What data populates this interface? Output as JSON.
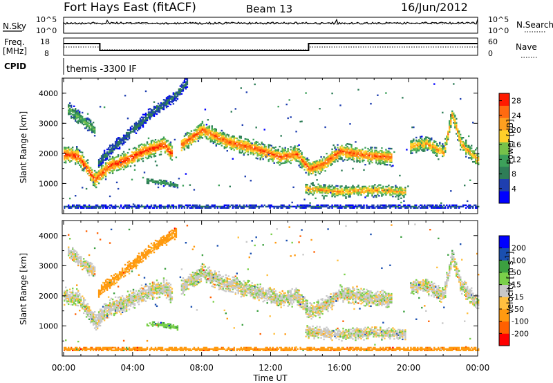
{
  "header": {
    "station": "Fort Hays East (fitACF)",
    "beam": "Beam 13",
    "date": "16/Jun/2012"
  },
  "panels": {
    "nsky_label": "N.Sky",
    "nsearch_label": "N.Search",
    "nsky_ticks": [
      "10^5",
      "10^0"
    ],
    "nsearch_ticks": [
      "10^5",
      "10^0"
    ],
    "freq_label": [
      "Freq.",
      "[MHz]"
    ],
    "freq_ticks": [
      "18",
      "8"
    ],
    "nave_label": "Nave",
    "nave_ticks": [
      "60",
      "0"
    ],
    "cpid_label": "CPID",
    "cpid_value": "themis -3300 IF"
  },
  "colors": {
    "power": [
      "#0000ff",
      "#1f3fb0",
      "#2e7d57",
      "#3da05a",
      "#77c24a",
      "#ffd02a",
      "#ffa020",
      "#ff6a10",
      "#ff1a00"
    ],
    "velocity": [
      "#ff0000",
      "#ff6000",
      "#ff9a10",
      "#ffc040",
      "#c8c8c8",
      "#7ad04a",
      "#3ca040",
      "#1a4fb0",
      "#0000ff"
    ]
  },
  "chart_data": [
    {
      "type": "heatmap",
      "title": "",
      "xlabel": "Time UT",
      "ylabel": "Slant Range [km]",
      "xlim": [
        "00:00",
        "24:00"
      ],
      "ylim": [
        0,
        4500
      ],
      "x_ticks": [
        "00:00",
        "04:00",
        "08:00",
        "12:00",
        "16:00",
        "20:00",
        "00:00"
      ],
      "y_ticks": [
        1000,
        2000,
        3000,
        4000
      ],
      "colorbar_label": "Power [dB]",
      "colorbar_ticks": [
        4,
        8,
        12,
        16,
        20,
        24,
        28
      ],
      "colorbar_range": [
        0,
        30
      ],
      "echo_bands": [
        {
          "t": [
            0,
            0.8,
            1.8,
            2.6,
            3.6,
            4.6,
            5.8,
            6.3
          ],
          "r": [
            1950,
            1880,
            1100,
            1550,
            1750,
            2050,
            2250,
            1950
          ],
          "w": 230,
          "peak": 28
        },
        {
          "t": [
            0.2,
            1.0,
            1.8
          ],
          "r": [
            3450,
            3100,
            2750
          ],
          "w": 180,
          "peak": 14
        },
        {
          "t": [
            2.0,
            3.5,
            5.0,
            6.5,
            7.2
          ],
          "r": [
            1700,
            2500,
            3300,
            3900,
            4400
          ],
          "w": 150,
          "peak": 8
        },
        {
          "t": [
            6.8,
            8.0,
            9.5,
            11.0,
            12.5,
            13.5,
            14.2,
            15.0,
            16.0,
            17.5,
            19.0
          ],
          "r": [
            2250,
            2750,
            2350,
            2150,
            1850,
            1950,
            1450,
            1600,
            2050,
            1900,
            1850
          ],
          "w": 220,
          "peak": 26
        },
        {
          "t": [
            14.0,
            16.0,
            18.0,
            19.8
          ],
          "r": [
            800,
            700,
            750,
            700
          ],
          "w": 160,
          "peak": 22
        },
        {
          "t": [
            20.0,
            21.0,
            22.0,
            22.5,
            23.0,
            24.0
          ],
          "r": [
            2200,
            2300,
            2000,
            3300,
            2300,
            1750
          ],
          "w": 200,
          "peak": 22
        },
        {
          "t": [
            4.8,
            5.8,
            6.6
          ],
          "r": [
            1050,
            1000,
            900
          ],
          "w": 80,
          "peak": 12
        },
        {
          "t": [
            0.0,
            24.0
          ],
          "r": [
            200,
            200
          ],
          "w": 60,
          "peak": 6
        }
      ]
    },
    {
      "type": "heatmap",
      "title": "",
      "xlabel": "Time UT",
      "ylabel": "Slant Range [km]",
      "xlim": [
        "00:00",
        "24:00"
      ],
      "ylim": [
        0,
        4500
      ],
      "x_ticks": [
        "00:00",
        "04:00",
        "08:00",
        "12:00",
        "16:00",
        "20:00",
        "00:00"
      ],
      "y_ticks": [
        1000,
        2000,
        3000,
        4000
      ],
      "colorbar_label": "Velocity [m s^-1]",
      "colorbar_ticks": [
        200,
        100,
        50,
        15,
        -15,
        -50,
        -100,
        -200
      ],
      "echo_bands": [
        {
          "t": [
            0,
            0.8,
            1.8,
            2.6,
            3.6,
            4.6,
            5.8,
            6.3
          ],
          "r": [
            1950,
            1880,
            1100,
            1550,
            1750,
            2050,
            2250,
            1950
          ],
          "w": 230,
          "vel": 0
        },
        {
          "t": [
            0.2,
            1.0,
            1.8
          ],
          "r": [
            3450,
            3100,
            2750
          ],
          "w": 180,
          "vel": 0
        },
        {
          "t": [
            2.0,
            3.5,
            5.0,
            6.5
          ],
          "r": [
            2100,
            2800,
            3500,
            4100
          ],
          "w": 150,
          "vel": -70
        },
        {
          "t": [
            6.8,
            8.0,
            9.5,
            11.0,
            12.5,
            13.5,
            14.2,
            15.0,
            16.0,
            17.5,
            19.0
          ],
          "r": [
            2250,
            2750,
            2350,
            2150,
            1850,
            1950,
            1450,
            1600,
            2050,
            1900,
            1850
          ],
          "w": 220,
          "vel": 0
        },
        {
          "t": [
            14.0,
            16.0,
            18.0,
            19.8
          ],
          "r": [
            800,
            700,
            750,
            700
          ],
          "w": 160,
          "vel": 0
        },
        {
          "t": [
            20.0,
            21.0,
            22.0,
            22.5,
            23.0,
            24.0
          ],
          "r": [
            2200,
            2300,
            2000,
            3300,
            2300,
            1750
          ],
          "w": 200,
          "vel": 0
        },
        {
          "t": [
            4.8,
            5.8,
            6.6
          ],
          "r": [
            1050,
            1000,
            900
          ],
          "w": 80,
          "vel": 40
        },
        {
          "t": [
            0.0,
            24.0
          ],
          "r": [
            200,
            200
          ],
          "w": 60,
          "vel": -80
        }
      ]
    }
  ]
}
